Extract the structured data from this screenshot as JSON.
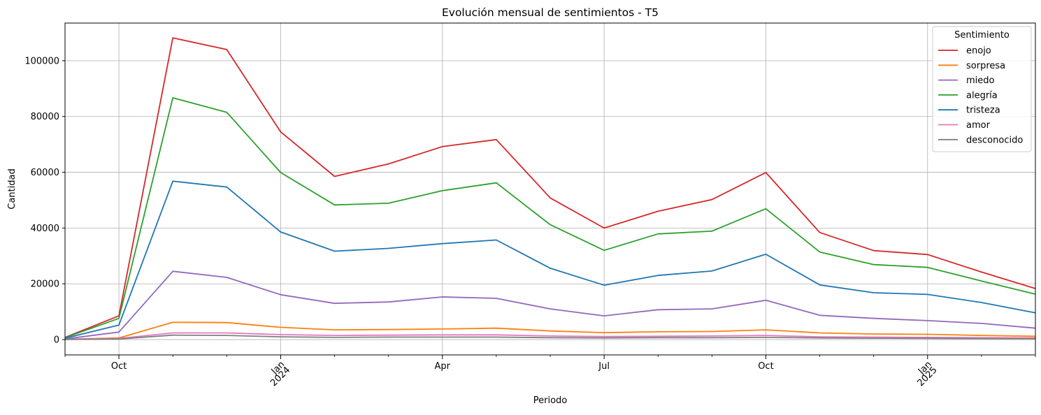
{
  "chart_data": {
    "type": "line",
    "title": "Evolución mensual de sentimientos - T5",
    "xlabel": "Periodo",
    "ylabel": "Cantidad",
    "x": [
      "2023-09",
      "2023-10",
      "2023-11",
      "2023-12",
      "2024-01",
      "2024-02",
      "2024-03",
      "2024-04",
      "2024-05",
      "2024-06",
      "2024-07",
      "2024-08",
      "2024-09",
      "2024-10",
      "2024-11",
      "2024-12",
      "2025-01",
      "2025-02",
      "2025-03"
    ],
    "ylim": [
      -5500,
      113500
    ],
    "yticks": [
      0,
      20000,
      40000,
      60000,
      80000,
      100000
    ],
    "ytick_labels": [
      "0",
      "20000",
      "40000",
      "60000",
      "80000",
      "100000"
    ],
    "xticks": [
      {
        "x": "2023-10",
        "label": "Oct",
        "sub": "",
        "rotated": false
      },
      {
        "x": "2024-01",
        "label": "Jan",
        "sub": "2024",
        "rotated": true
      },
      {
        "x": "2024-04",
        "label": "Apr",
        "sub": "",
        "rotated": false
      },
      {
        "x": "2024-07",
        "label": "Jul",
        "sub": "",
        "rotated": false
      },
      {
        "x": "2024-10",
        "label": "Oct",
        "sub": "",
        "rotated": false
      },
      {
        "x": "2025-01",
        "label": "Jan",
        "sub": "2025",
        "rotated": true
      }
    ],
    "grid": true,
    "legend": {
      "title": "Sentimiento",
      "placement": "top-right"
    },
    "series": [
      {
        "name": "enojo",
        "color": "#d62728",
        "values": [
          800,
          8500,
          108200,
          104000,
          74500,
          58500,
          63000,
          69200,
          71700,
          50800,
          40000,
          46000,
          50200,
          59900,
          38400,
          31900,
          30500,
          24200,
          18300
        ]
      },
      {
        "name": "sorpresa",
        "color": "#ff7f0e",
        "values": [
          100,
          600,
          6200,
          6100,
          4400,
          3500,
          3600,
          3800,
          4100,
          3100,
          2500,
          2800,
          2900,
          3500,
          2400,
          2000,
          1900,
          1500,
          1200
        ]
      },
      {
        "name": "miedo",
        "color": "#9467bd",
        "values": [
          200,
          2700,
          24500,
          22300,
          16100,
          13000,
          13500,
          15300,
          14800,
          11000,
          8500,
          10700,
          11000,
          14100,
          8700,
          7600,
          6800,
          5800,
          4100
        ]
      },
      {
        "name": "alegría",
        "color": "#2ca02c",
        "values": [
          700,
          7600,
          86700,
          81500,
          59900,
          48300,
          48900,
          53400,
          56200,
          41200,
          32000,
          37900,
          38900,
          46900,
          31400,
          26900,
          25900,
          21000,
          16300
        ]
      },
      {
        "name": "tristeza",
        "color": "#1f77b4",
        "values": [
          500,
          5200,
          56800,
          54700,
          38600,
          31700,
          32700,
          34400,
          35700,
          25600,
          19500,
          23000,
          24600,
          30600,
          19600,
          16800,
          16200,
          13300,
          9600
        ]
      },
      {
        "name": "amor",
        "color": "#e377c2",
        "values": [
          50,
          400,
          2400,
          2400,
          1800,
          1500,
          1600,
          1700,
          1700,
          1300,
          1100,
          1200,
          1300,
          1500,
          1000,
          900,
          800,
          700,
          600
        ]
      },
      {
        "name": "desconocido",
        "color": "#7f7f7f",
        "values": [
          30,
          200,
          1600,
          1500,
          1000,
          800,
          900,
          900,
          900,
          700,
          600,
          700,
          700,
          800,
          600,
          500,
          450,
          350,
          300
        ]
      }
    ]
  }
}
